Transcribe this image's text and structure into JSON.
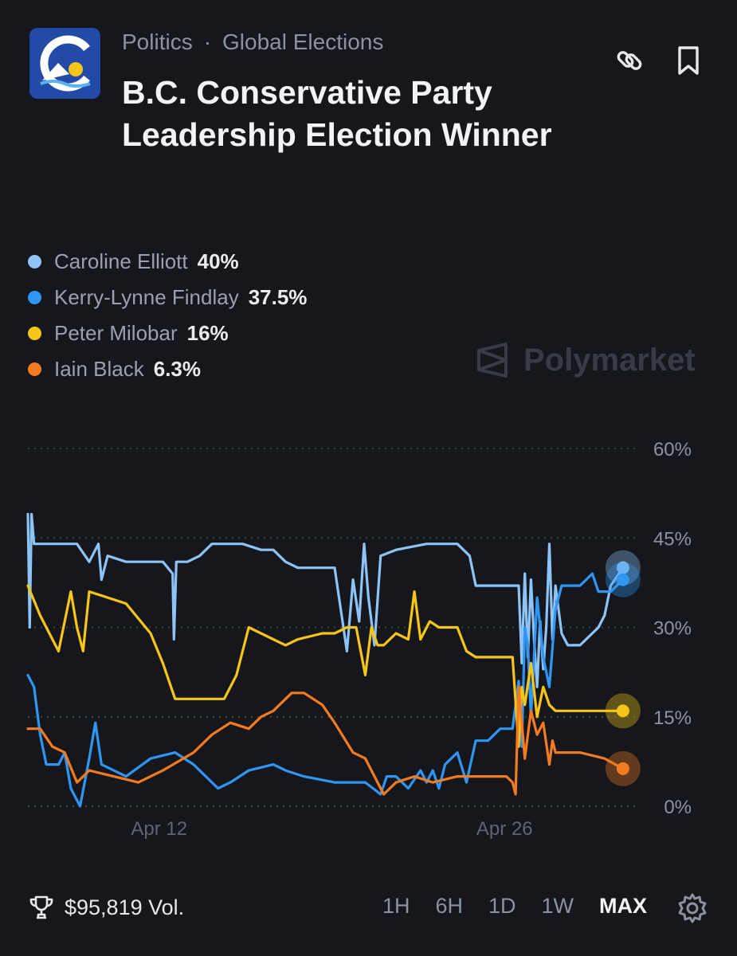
{
  "header": {
    "category": "Politics",
    "separator": "·",
    "subcategory": "Global Elections",
    "title": "B.C. Conservative Party Leadership Election Winner"
  },
  "icons": {
    "link": "link-icon",
    "bookmark": "bookmark-icon",
    "trophy": "trophy-icon",
    "settings": "gear-icon"
  },
  "legend": [
    {
      "name": "Caroline Elliott",
      "pct": "40%",
      "color": "#8ec3f5"
    },
    {
      "name": "Kerry-Lynne Findlay",
      "pct": "37.5%",
      "color": "#2f96f3"
    },
    {
      "name": "Peter Milobar",
      "pct": "16%",
      "color": "#f5c518"
    },
    {
      "name": "Iain Black",
      "pct": "6.3%",
      "color": "#f47b20"
    }
  ],
  "watermark": "Polymarket",
  "footer": {
    "volume": "$95,819 Vol.",
    "ranges": [
      "1H",
      "6H",
      "1D",
      "1W",
      "MAX"
    ],
    "active_range": "MAX"
  },
  "chart_data": {
    "type": "line",
    "y_ticks": [
      "60%",
      "45%",
      "30%",
      "15%",
      "0%"
    ],
    "ylim": [
      0,
      60
    ],
    "x_ticks": [
      {
        "label": "Apr 12",
        "t": 0.214
      },
      {
        "label": "Apr 26",
        "t": 0.777
      }
    ],
    "grid": "dotted horizontal",
    "series": [
      {
        "name": "Caroline Elliott",
        "color": "#8ec3f5",
        "values": [
          [
            0,
            49
          ],
          [
            0.003,
            30
          ],
          [
            0.006,
            49
          ],
          [
            0.01,
            44
          ],
          [
            0.05,
            44
          ],
          [
            0.08,
            44
          ],
          [
            0.1,
            41
          ],
          [
            0.115,
            44
          ],
          [
            0.12,
            38
          ],
          [
            0.13,
            42
          ],
          [
            0.16,
            41
          ],
          [
            0.2,
            41
          ],
          [
            0.22,
            41
          ],
          [
            0.236,
            39
          ],
          [
            0.238,
            28
          ],
          [
            0.242,
            41
          ],
          [
            0.26,
            41
          ],
          [
            0.28,
            42
          ],
          [
            0.3,
            44
          ],
          [
            0.35,
            44
          ],
          [
            0.38,
            43
          ],
          [
            0.4,
            43
          ],
          [
            0.42,
            41
          ],
          [
            0.44,
            40
          ],
          [
            0.48,
            40
          ],
          [
            0.5,
            40
          ],
          [
            0.52,
            26
          ],
          [
            0.525,
            32
          ],
          [
            0.53,
            38
          ],
          [
            0.54,
            31
          ],
          [
            0.548,
            44
          ],
          [
            0.555,
            35
          ],
          [
            0.565,
            27
          ],
          [
            0.575,
            42
          ],
          [
            0.6,
            43
          ],
          [
            0.65,
            44
          ],
          [
            0.7,
            44
          ],
          [
            0.72,
            42
          ],
          [
            0.73,
            37
          ],
          [
            0.79,
            37
          ],
          [
            0.8,
            37
          ],
          [
            0.805,
            24
          ],
          [
            0.81,
            39
          ],
          [
            0.815,
            25
          ],
          [
            0.82,
            38
          ],
          [
            0.825,
            28
          ],
          [
            0.83,
            20
          ],
          [
            0.835,
            31
          ],
          [
            0.84,
            23
          ],
          [
            0.845,
            30
          ],
          [
            0.85,
            44
          ],
          [
            0.855,
            28
          ],
          [
            0.86,
            37
          ],
          [
            0.87,
            29
          ],
          [
            0.88,
            27
          ],
          [
            0.9,
            27
          ],
          [
            0.93,
            30
          ],
          [
            0.94,
            32
          ],
          [
            0.95,
            37
          ],
          [
            0.97,
            40
          ]
        ]
      },
      {
        "name": "Kerry-Lynne Findlay",
        "color": "#2f96f3",
        "values": [
          [
            0,
            22
          ],
          [
            0.01,
            20
          ],
          [
            0.02,
            12
          ],
          [
            0.03,
            7
          ],
          [
            0.05,
            7
          ],
          [
            0.06,
            9
          ],
          [
            0.07,
            3
          ],
          [
            0.085,
            0
          ],
          [
            0.1,
            8
          ],
          [
            0.11,
            14
          ],
          [
            0.12,
            7
          ],
          [
            0.14,
            6
          ],
          [
            0.16,
            5
          ],
          [
            0.2,
            8
          ],
          [
            0.24,
            9
          ],
          [
            0.27,
            7
          ],
          [
            0.29,
            5
          ],
          [
            0.31,
            3
          ],
          [
            0.33,
            4
          ],
          [
            0.36,
            6
          ],
          [
            0.4,
            7
          ],
          [
            0.42,
            6
          ],
          [
            0.45,
            5
          ],
          [
            0.5,
            4
          ],
          [
            0.55,
            4
          ],
          [
            0.575,
            2
          ],
          [
            0.585,
            5
          ],
          [
            0.6,
            5
          ],
          [
            0.62,
            3
          ],
          [
            0.64,
            6
          ],
          [
            0.65,
            4
          ],
          [
            0.66,
            6
          ],
          [
            0.67,
            3
          ],
          [
            0.68,
            7
          ],
          [
            0.7,
            9
          ],
          [
            0.715,
            4
          ],
          [
            0.73,
            11
          ],
          [
            0.75,
            11
          ],
          [
            0.77,
            13
          ],
          [
            0.79,
            13
          ],
          [
            0.8,
            21
          ],
          [
            0.805,
            10
          ],
          [
            0.81,
            30
          ],
          [
            0.815,
            27
          ],
          [
            0.82,
            15
          ],
          [
            0.83,
            35
          ],
          [
            0.84,
            25
          ],
          [
            0.85,
            20
          ],
          [
            0.86,
            33
          ],
          [
            0.87,
            37
          ],
          [
            0.9,
            37
          ],
          [
            0.92,
            39
          ],
          [
            0.93,
            36
          ],
          [
            0.95,
            36
          ],
          [
            0.97,
            38
          ]
        ]
      },
      {
        "name": "Peter Milobar",
        "color": "#f5c518",
        "values": [
          [
            0,
            37
          ],
          [
            0.02,
            32
          ],
          [
            0.04,
            28
          ],
          [
            0.05,
            26
          ],
          [
            0.07,
            36
          ],
          [
            0.08,
            30
          ],
          [
            0.09,
            26
          ],
          [
            0.1,
            36
          ],
          [
            0.13,
            35
          ],
          [
            0.16,
            34
          ],
          [
            0.2,
            29
          ],
          [
            0.22,
            24
          ],
          [
            0.24,
            18
          ],
          [
            0.27,
            18
          ],
          [
            0.3,
            18
          ],
          [
            0.32,
            18
          ],
          [
            0.34,
            22
          ],
          [
            0.36,
            30
          ],
          [
            0.38,
            29
          ],
          [
            0.4,
            28
          ],
          [
            0.42,
            27
          ],
          [
            0.44,
            28
          ],
          [
            0.48,
            29
          ],
          [
            0.5,
            29
          ],
          [
            0.52,
            30
          ],
          [
            0.535,
            30
          ],
          [
            0.55,
            22
          ],
          [
            0.56,
            30
          ],
          [
            0.57,
            27
          ],
          [
            0.58,
            27
          ],
          [
            0.6,
            29
          ],
          [
            0.62,
            28
          ],
          [
            0.63,
            36
          ],
          [
            0.64,
            28
          ],
          [
            0.655,
            31
          ],
          [
            0.67,
            30
          ],
          [
            0.7,
            30
          ],
          [
            0.715,
            26
          ],
          [
            0.73,
            25
          ],
          [
            0.76,
            25
          ],
          [
            0.78,
            25
          ],
          [
            0.79,
            25
          ],
          [
            0.8,
            10
          ],
          [
            0.805,
            20
          ],
          [
            0.81,
            17
          ],
          [
            0.82,
            24
          ],
          [
            0.83,
            15
          ],
          [
            0.84,
            20
          ],
          [
            0.85,
            17
          ],
          [
            0.86,
            16
          ],
          [
            0.9,
            16
          ],
          [
            0.93,
            16
          ],
          [
            0.97,
            16
          ]
        ]
      },
      {
        "name": "Iain Black",
        "color": "#f47b20",
        "values": [
          [
            0,
            13
          ],
          [
            0.02,
            13
          ],
          [
            0.04,
            10
          ],
          [
            0.06,
            9
          ],
          [
            0.08,
            4
          ],
          [
            0.1,
            6
          ],
          [
            0.14,
            5
          ],
          [
            0.18,
            4
          ],
          [
            0.22,
            6
          ],
          [
            0.27,
            9
          ],
          [
            0.3,
            12
          ],
          [
            0.33,
            14
          ],
          [
            0.36,
            13
          ],
          [
            0.38,
            15
          ],
          [
            0.4,
            16
          ],
          [
            0.43,
            19
          ],
          [
            0.45,
            19
          ],
          [
            0.48,
            17
          ],
          [
            0.5,
            14
          ],
          [
            0.53,
            9
          ],
          [
            0.55,
            8
          ],
          [
            0.57,
            4
          ],
          [
            0.58,
            2
          ],
          [
            0.6,
            4
          ],
          [
            0.63,
            5
          ],
          [
            0.66,
            4
          ],
          [
            0.7,
            5
          ],
          [
            0.74,
            5
          ],
          [
            0.78,
            5
          ],
          [
            0.79,
            4
          ],
          [
            0.795,
            2
          ],
          [
            0.8,
            20
          ],
          [
            0.805,
            14
          ],
          [
            0.81,
            8
          ],
          [
            0.82,
            16
          ],
          [
            0.83,
            12
          ],
          [
            0.84,
            14
          ],
          [
            0.85,
            7
          ],
          [
            0.855,
            11
          ],
          [
            0.86,
            9
          ],
          [
            0.9,
            9
          ],
          [
            0.94,
            8
          ],
          [
            0.97,
            6.3
          ]
        ]
      }
    ]
  }
}
